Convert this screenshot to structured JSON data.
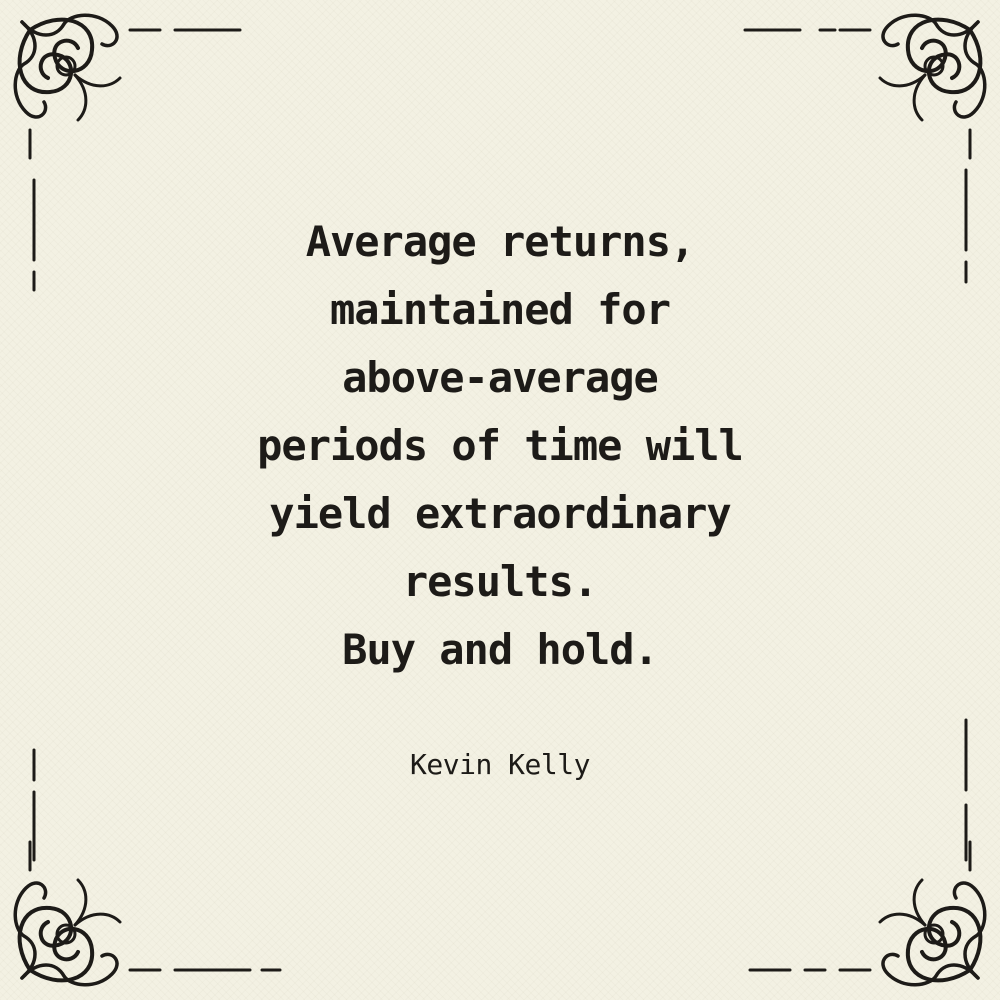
{
  "quote": {
    "lines": [
      "Average returns,",
      "maintained for",
      "above-average",
      "periods of time will",
      "yield extraordinary",
      "results.",
      "Buy and hold."
    ]
  },
  "author": "Kevin Kelly",
  "colors": {
    "paper": "#f3f1e3",
    "ink": "#1d1b18"
  },
  "ornaments": [
    "flourish-corner-icon"
  ]
}
